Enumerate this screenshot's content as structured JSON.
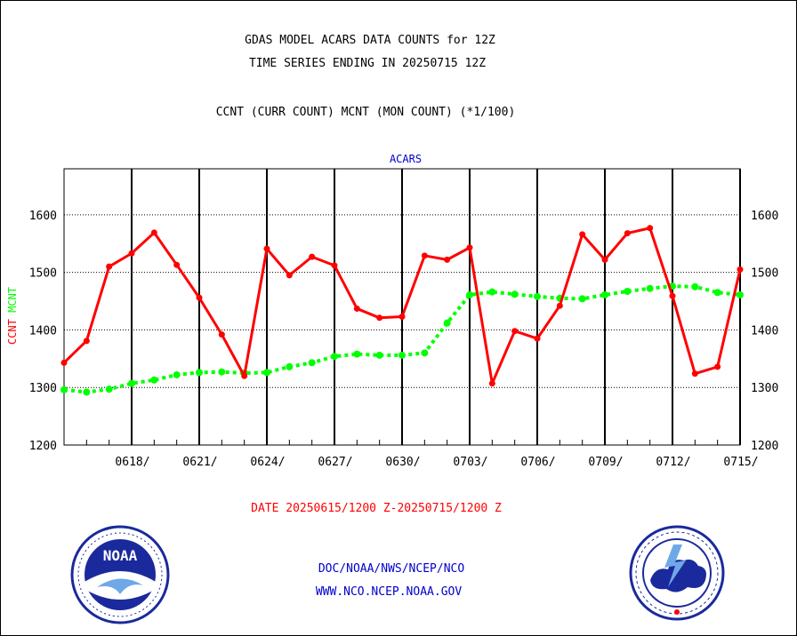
{
  "header": {
    "title1": "GDAS MODEL ACARS DATA COUNTS for 12Z",
    "title2": "TIME SERIES ENDING IN 20250715 12Z",
    "subtitle": "CCNT (CURR COUNT) MCNT (MON COUNT) (*1/100)"
  },
  "chart_data": {
    "type": "line",
    "title": "ACARS",
    "ylabel_ccnt": "CCNT",
    "ylabel_mcnt": "MCNT",
    "ylim": [
      1200,
      1680
    ],
    "yticks": [
      1200,
      1300,
      1400,
      1500,
      1600
    ],
    "xlabel": "DATE 20250615/1200 Z-20250715/1200 Z",
    "x_tick_labels": [
      "0618/",
      "0621/",
      "0624/",
      "0627/",
      "0630/",
      "0703/",
      "0706/",
      "0709/",
      "0712/",
      "0715/"
    ],
    "x": [
      "0615",
      "0616",
      "0617",
      "0618",
      "0619",
      "0620",
      "0621",
      "0622",
      "0623",
      "0624",
      "0625",
      "0626",
      "0627",
      "0628",
      "0629",
      "0630",
      "0701",
      "0702",
      "0703",
      "0704",
      "0705",
      "0706",
      "0707",
      "0708",
      "0709",
      "0710",
      "0711",
      "0712",
      "0713",
      "0714",
      "0715"
    ],
    "grid": true,
    "series": [
      {
        "name": "CCNT",
        "color": "#ff0000",
        "style": "solid",
        "values": [
          1343,
          1381,
          1510,
          1533,
          1569,
          1513,
          1456,
          1392,
          1320,
          1541,
          1495,
          1527,
          1512,
          1437,
          1421,
          1423,
          1529,
          1522,
          1543,
          1307,
          1398,
          1385,
          1442,
          1566,
          1522,
          1568,
          1577,
          1459,
          1324,
          1336,
          1505
        ]
      },
      {
        "name": "MCNT",
        "color": "#00ff00",
        "style": "dotted",
        "values": [
          1296,
          1292,
          1297,
          1307,
          1313,
          1322,
          1326,
          1327,
          1325,
          1326,
          1336,
          1343,
          1354,
          1358,
          1356,
          1356,
          1360,
          1412,
          1461,
          1466,
          1462,
          1458,
          1455,
          1454,
          1461,
          1467,
          1472,
          1476,
          1475,
          1465,
          1461
        ]
      }
    ]
  },
  "footer": {
    "line1": "DOC/NOAA/NWS/NCEP/NCO",
    "line2": "WWW.NCO.NCEP.NOAA.GOV"
  },
  "colors": {
    "title_blue": "#0000cc",
    "date_red": "#ff0000"
  }
}
